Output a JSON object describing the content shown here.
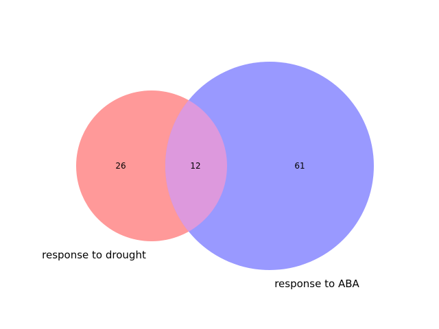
{
  "venn": {
    "sets": [
      {
        "name": "response to drought",
        "only_count": "26",
        "color": "#ff9999"
      },
      {
        "name": "response to ABA",
        "only_count": "61",
        "color": "#9999ff"
      }
    ],
    "intersection": {
      "count": "12",
      "color": "#dd99dd"
    }
  }
}
